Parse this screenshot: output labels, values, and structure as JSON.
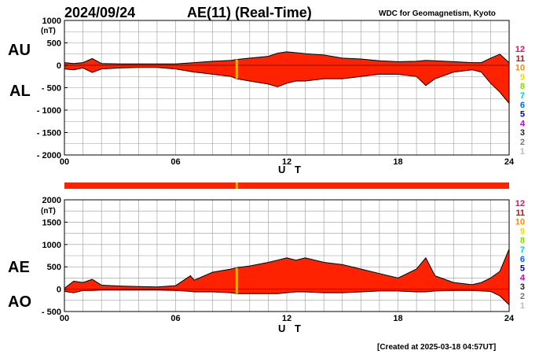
{
  "header": {
    "date": "2024/09/24",
    "title": "AE(11) (Real-Time)",
    "institution": "WDC for Geomagnetism, Kyoto"
  },
  "footer": {
    "created": "[Created at 2025-03-18 04:57UT]"
  },
  "colors": {
    "fill": "#ff2200",
    "outline": "#000000",
    "highlight": "#ffaa00",
    "bar": "#ff2200"
  },
  "legend": {
    "entries": [
      {
        "label": "12",
        "color": "#ff0066"
      },
      {
        "label": "11",
        "color": "#dd0000"
      },
      {
        "label": "10",
        "color": "#ff8800"
      },
      {
        "label": "9",
        "color": "#eedd00"
      },
      {
        "label": "8",
        "color": "#88dd00"
      },
      {
        "label": "7",
        "color": "#00cccc"
      },
      {
        "label": "6",
        "color": "#0066ff"
      },
      {
        "label": "5",
        "color": "#0000cc"
      },
      {
        "label": "4",
        "color": "#cc00cc"
      },
      {
        "label": "3",
        "color": "#222222"
      },
      {
        "label": "2",
        "color": "#777777"
      },
      {
        "label": "1",
        "color": "#bbbbbb"
      }
    ]
  },
  "status_bar": {
    "color": "#ff2200",
    "highlight_hour": 9.3,
    "highlight_color": "#ffaa00"
  },
  "chart_data": [
    {
      "type": "area",
      "upper_label": "AU",
      "lower_label": "AL",
      "unit": "(nT)",
      "xlabel": "U T",
      "x_ticks": [
        "00",
        "06",
        "12",
        "18",
        "24"
      ],
      "x_tick_values": [
        0,
        6,
        12,
        18,
        24
      ],
      "xlim": [
        0,
        24
      ],
      "ylim": [
        -2000,
        1000
      ],
      "y_ticks": [
        1000,
        500,
        0,
        -500,
        -1000,
        -1500,
        -2000
      ],
      "y_tick_labels": [
        "1000",
        "500",
        "0",
        "- 500",
        "- 1000",
        "- 1500",
        "- 2000"
      ],
      "grid": true,
      "highlight_hour": 9.3,
      "x": [
        0,
        0.5,
        1,
        1.5,
        2,
        3,
        4,
        5,
        6,
        7,
        8,
        9,
        9.3,
        10,
        11,
        11.5,
        12,
        12.5,
        13,
        14,
        15,
        16,
        17,
        18,
        19,
        19.5,
        20,
        21,
        22,
        22.5,
        23,
        23.5,
        24
      ],
      "series": [
        {
          "name": "AU",
          "values": [
            60,
            40,
            60,
            150,
            40,
            30,
            30,
            30,
            30,
            60,
            90,
            110,
            130,
            160,
            200,
            270,
            300,
            280,
            260,
            230,
            160,
            140,
            100,
            80,
            90,
            110,
            100,
            80,
            60,
            60,
            160,
            250,
            60
          ]
        },
        {
          "name": "AL",
          "values": [
            -80,
            -100,
            -60,
            -160,
            -80,
            -60,
            -50,
            -50,
            -80,
            -150,
            -200,
            -250,
            -300,
            -350,
            -420,
            -480,
            -400,
            -350,
            -350,
            -300,
            -300,
            -250,
            -200,
            -200,
            -250,
            -450,
            -300,
            -150,
            -100,
            -150,
            -400,
            -600,
            -850
          ]
        }
      ]
    },
    {
      "type": "area",
      "upper_label": "AE",
      "lower_label": "AO",
      "unit": "(nT)",
      "xlabel": "U T",
      "x_ticks": [
        "00",
        "06",
        "12",
        "18",
        "24"
      ],
      "x_tick_values": [
        0,
        6,
        12,
        18,
        24
      ],
      "xlim": [
        0,
        24
      ],
      "ylim": [
        -500,
        2000
      ],
      "y_ticks": [
        2000,
        1500,
        1000,
        500,
        0,
        -500
      ],
      "y_tick_labels": [
        "2000",
        "1500",
        "1000",
        "500",
        "0",
        "- 500"
      ],
      "grid": true,
      "highlight_hour": 9.3,
      "x": [
        0,
        0.5,
        1,
        1.5,
        2,
        3,
        4,
        5,
        6,
        6.8,
        7,
        8,
        9,
        9.3,
        10,
        11,
        11.5,
        12,
        12.5,
        13,
        14,
        15,
        16,
        17,
        18,
        19,
        19.5,
        20,
        21,
        22,
        22.5,
        23,
        23.5,
        24
      ],
      "series": [
        {
          "name": "AE",
          "values": [
            20,
            180,
            150,
            220,
            90,
            70,
            60,
            50,
            80,
            300,
            200,
            380,
            450,
            480,
            520,
            600,
            650,
            700,
            650,
            700,
            600,
            550,
            450,
            350,
            250,
            450,
            700,
            300,
            150,
            100,
            150,
            250,
            400,
            900
          ]
        },
        {
          "name": "AO",
          "values": [
            -50,
            -80,
            -30,
            -30,
            -20,
            -20,
            -20,
            -20,
            -30,
            -50,
            -60,
            -60,
            -80,
            -100,
            -100,
            -100,
            -100,
            -80,
            -60,
            -60,
            -80,
            -80,
            -60,
            -40,
            -40,
            -60,
            -60,
            -40,
            -30,
            -30,
            -40,
            -50,
            -150,
            -350
          ]
        }
      ]
    }
  ]
}
